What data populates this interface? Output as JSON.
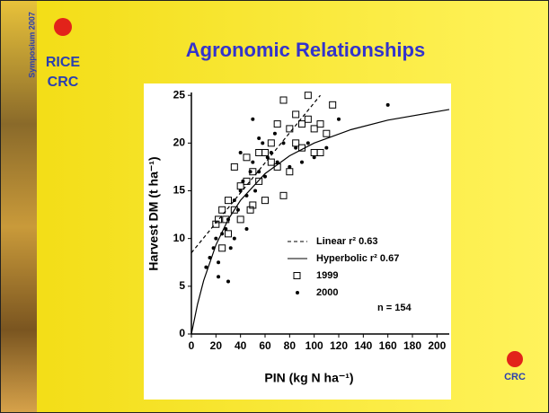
{
  "slide": {
    "logo": [
      "Symposium 2007",
      "RICE",
      "CRC"
    ],
    "footer_logo": "CRC"
  },
  "chart_data": {
    "type": "scatter",
    "title": "Agronomic Relationships",
    "x_label": "PIN  (kg N ha⁻¹)",
    "y_label": "Harvest DM  (t ha⁻¹)",
    "annotation": "n = 154",
    "xlim": [
      0,
      210
    ],
    "ylim": [
      0,
      25.3
    ],
    "xticks": [
      0,
      20,
      40,
      60,
      80,
      100,
      120,
      140,
      160,
      180,
      200
    ],
    "yticks": [
      0,
      5,
      10,
      15,
      20,
      25
    ],
    "grid": false,
    "series": [
      {
        "name": "Linear r² 0.63",
        "kind": "line",
        "style": "dashed",
        "color": "#000000",
        "x": [
          0,
          105
        ],
        "values": [
          8.5,
          25
        ]
      },
      {
        "name": "Hyperbolic r² 0.67",
        "kind": "line",
        "style": "solid",
        "color": "#000000",
        "x": [
          0,
          5,
          10,
          20,
          30,
          40,
          60,
          80,
          100,
          130,
          160,
          210
        ],
        "values": [
          0,
          3.11,
          5.6,
          9.33,
          12,
          14,
          16.8,
          18.67,
          20,
          21.41,
          22.4,
          23.52
        ]
      },
      {
        "name": "1999",
        "kind": "points",
        "marker": "square",
        "color": "#000000",
        "x": [
          22,
          25,
          30,
          35,
          40,
          45,
          50,
          55,
          60,
          65,
          70,
          75,
          80,
          85,
          90,
          95,
          100,
          105,
          110,
          115,
          100,
          90,
          80,
          75,
          60,
          50,
          40,
          35,
          30,
          28,
          45,
          55,
          65,
          70,
          85,
          95,
          105,
          20,
          25,
          48
        ],
        "values": [
          12,
          13,
          14,
          17.5,
          12,
          16,
          17,
          19,
          19,
          20,
          22,
          24.5,
          21.5,
          23,
          22,
          25,
          19,
          19,
          21,
          24,
          21.5,
          19.5,
          17,
          14.5,
          14,
          13.5,
          15.5,
          13,
          10.5,
          12,
          18.5,
          16,
          18,
          17.5,
          20,
          22.5,
          22,
          11.5,
          9,
          13
        ]
      },
      {
        "name": "2000",
        "kind": "points",
        "marker": "dot",
        "color": "#000000",
        "x": [
          12,
          15,
          18,
          20,
          22,
          25,
          28,
          30,
          32,
          35,
          38,
          40,
          42,
          45,
          48,
          50,
          52,
          55,
          58,
          60,
          62,
          65,
          68,
          70,
          75,
          80,
          85,
          90,
          95,
          100,
          110,
          120,
          160,
          30,
          22,
          45,
          35,
          50,
          40,
          55
        ],
        "values": [
          7,
          8,
          9,
          10,
          7.5,
          10.5,
          11,
          12,
          9,
          14,
          13,
          15,
          16,
          14.5,
          17,
          18,
          15,
          17,
          20,
          16.5,
          18.5,
          19,
          21,
          18,
          20,
          17.5,
          19.5,
          18,
          20,
          18.5,
          19.5,
          22.5,
          24,
          5.5,
          6,
          11,
          10,
          22.5,
          19,
          20.5
        ]
      }
    ]
  }
}
